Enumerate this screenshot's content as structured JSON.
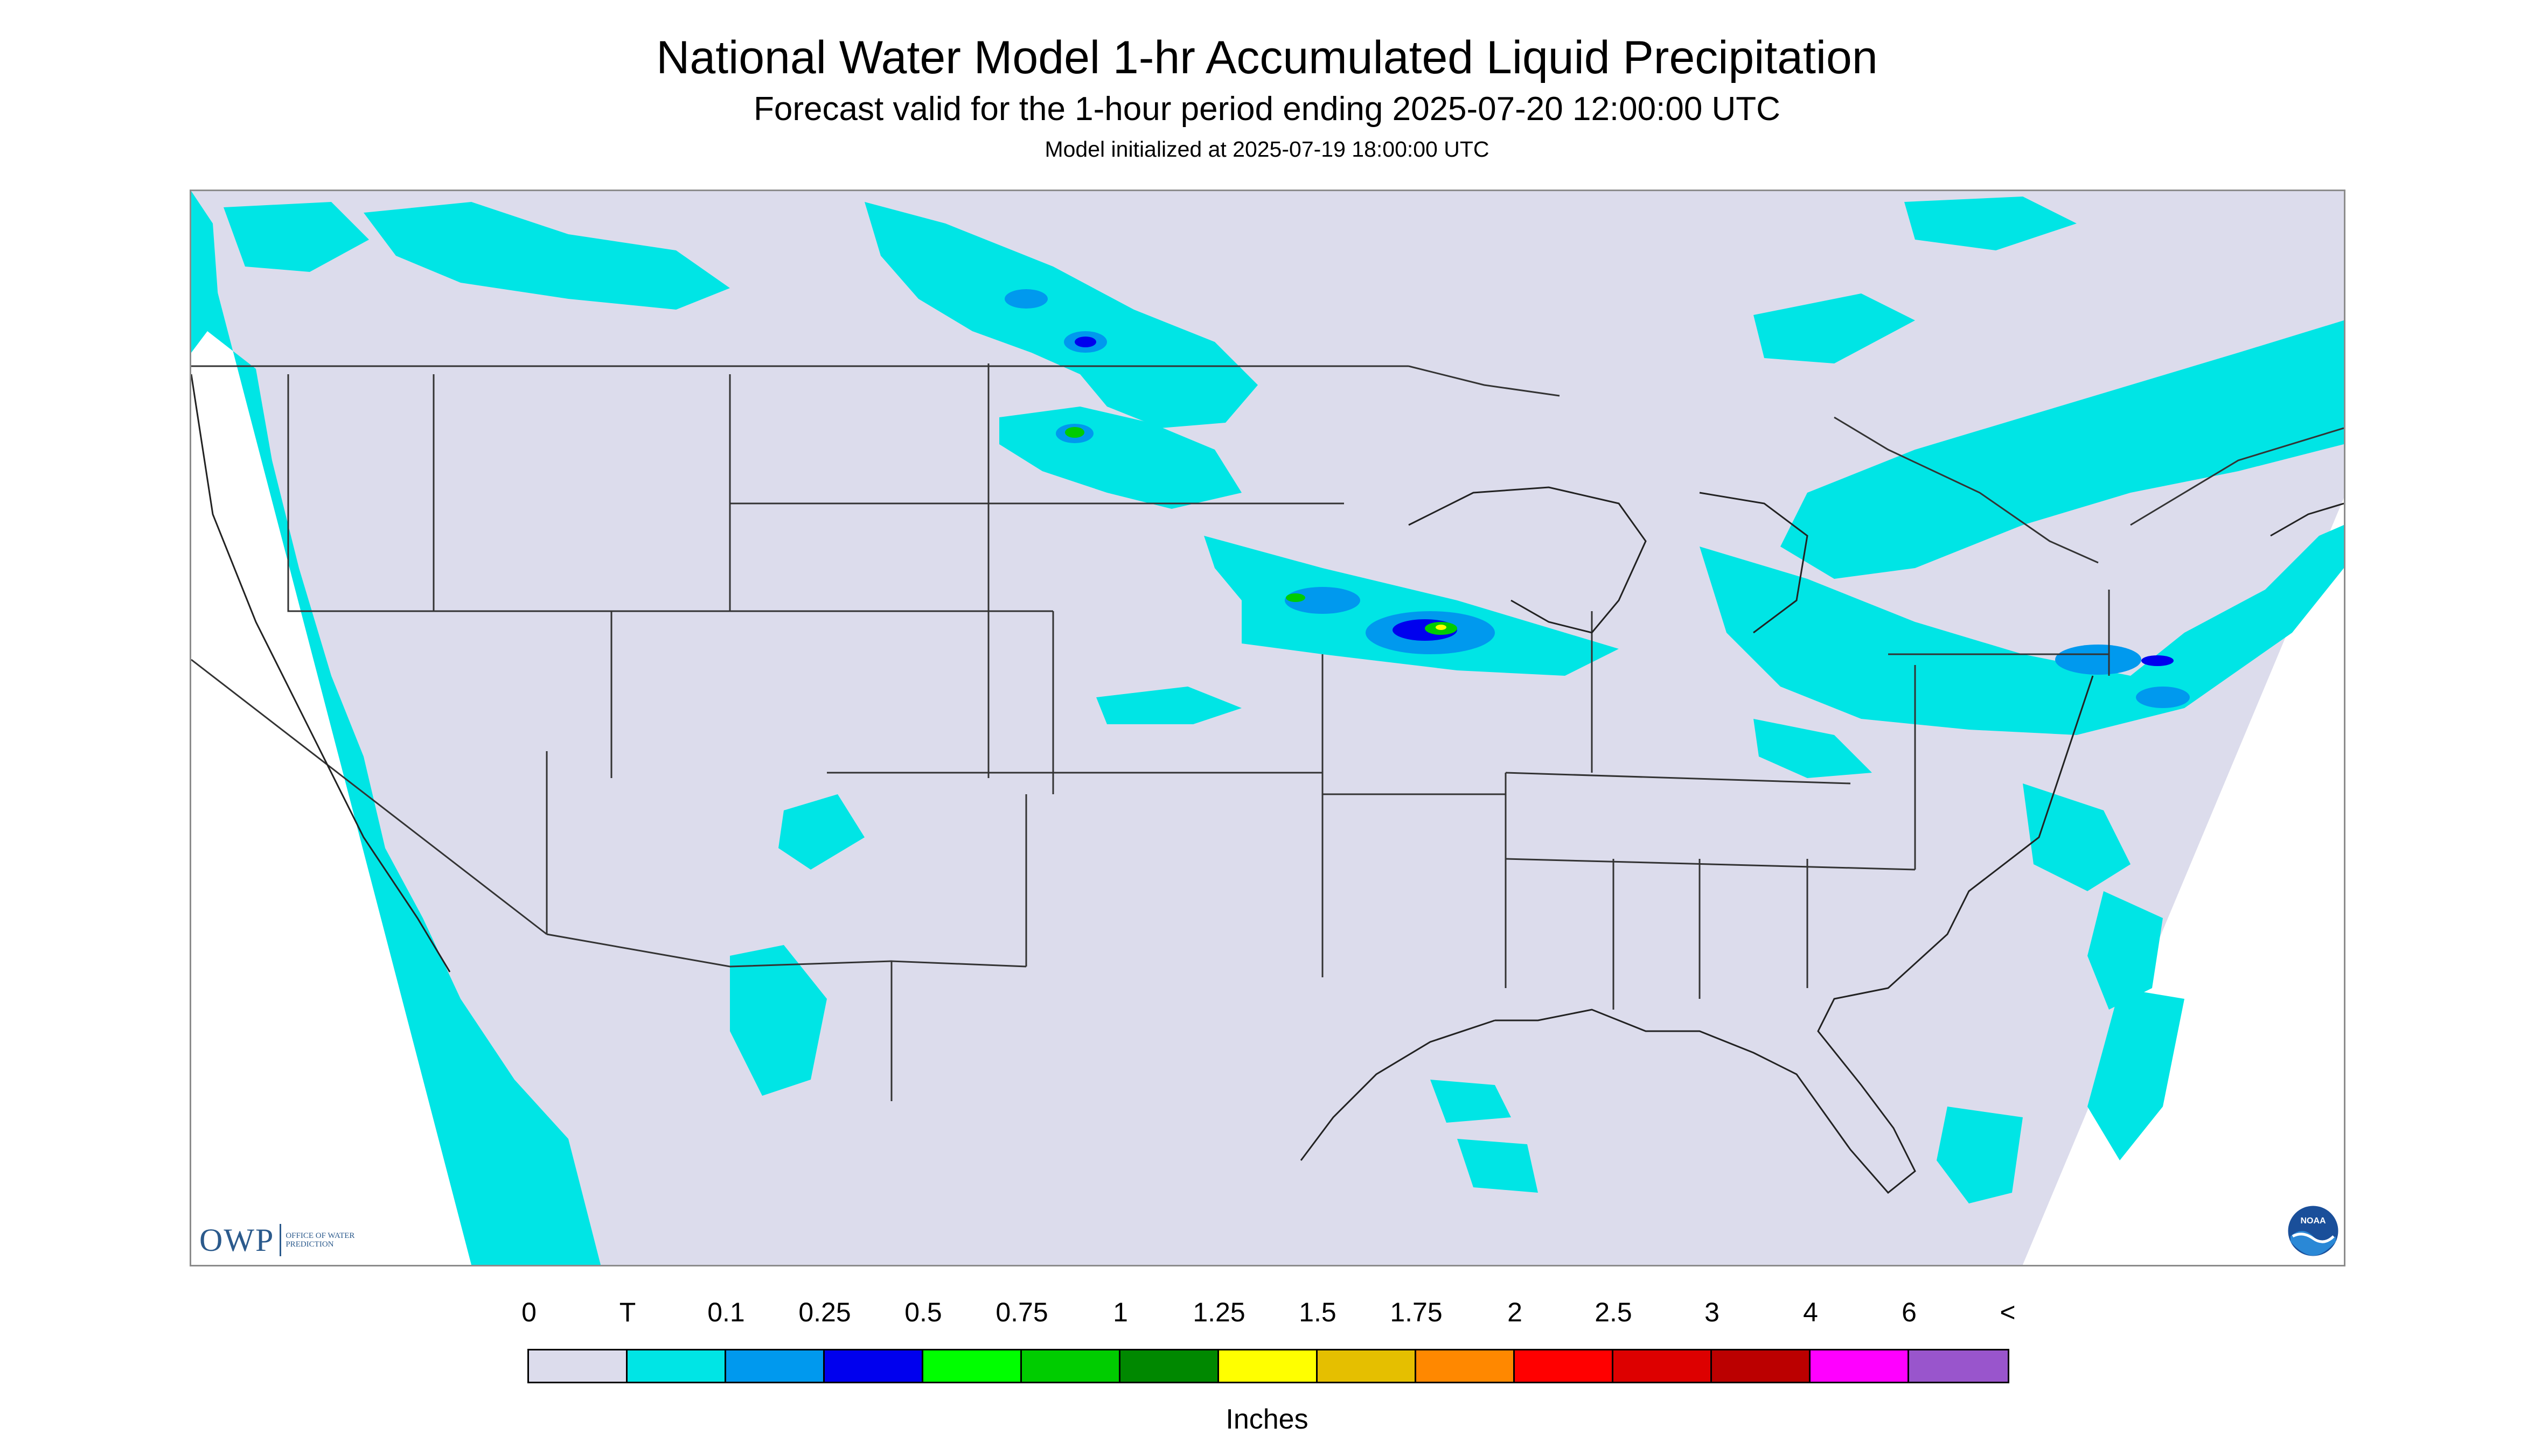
{
  "title": "National Water Model 1-hr Accumulated Liquid Precipitation",
  "subtitle": "Forecast valid for the 1-hour period ending 2025-07-20 12:00:00 UTC",
  "initialized": "Model initialized at 2025-07-19 18:00:00 UTC",
  "colors": {
    "background_land": "#dcdcec",
    "precip_trace": "#00e5e5",
    "precip_low": "#0099ee",
    "precip_mid": "#0000ee",
    "precip_green": "#00cc00",
    "precip_yellow": "#ffff00",
    "boundary": "#333333"
  },
  "legend": {
    "labels": [
      "0",
      "T",
      "0.1",
      "0.25",
      "0.5",
      "0.75",
      "1",
      "1.25",
      "1.5",
      "1.75",
      "2",
      "2.5",
      "3",
      "4",
      "6",
      "<"
    ],
    "colors": [
      "#dcdcec",
      "#00e5e5",
      "#0099ee",
      "#0000ee",
      "#00ff00",
      "#00cc00",
      "#008800",
      "#ffff00",
      "#e5bf00",
      "#ff8800",
      "#ff0000",
      "#dd0000",
      "#bb0000",
      "#ff00ff",
      "#9955cc"
    ],
    "units": "Inches"
  },
  "logos": {
    "owp": {
      "letters": "OWP",
      "text": "OFFICE OF WATER PREDICTION"
    },
    "noaa": {
      "text": "NOAA"
    }
  }
}
